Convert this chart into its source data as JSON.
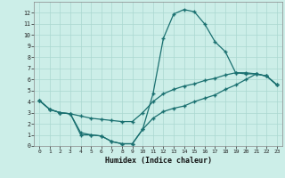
{
  "xlabel": "Humidex (Indice chaleur)",
  "xlim": [
    -0.5,
    23.5
  ],
  "ylim": [
    0,
    13
  ],
  "xticks": [
    0,
    1,
    2,
    3,
    4,
    5,
    6,
    7,
    8,
    9,
    10,
    11,
    12,
    13,
    14,
    15,
    16,
    17,
    18,
    19,
    20,
    21,
    22,
    23
  ],
  "yticks": [
    0,
    1,
    2,
    3,
    4,
    5,
    6,
    7,
    8,
    9,
    10,
    11,
    12
  ],
  "bg_color": "#cceee8",
  "grid_color": "#aad8d0",
  "line_color": "#1a7070",
  "line1_x": [
    0,
    1,
    2,
    3,
    4,
    5,
    6,
    7,
    8,
    9,
    10,
    11,
    12,
    13,
    14,
    15,
    16,
    17,
    18,
    19,
    20,
    21,
    22,
    23
  ],
  "line1_y": [
    4.1,
    3.3,
    3.0,
    2.9,
    1.2,
    1.0,
    0.9,
    0.4,
    0.2,
    0.2,
    1.5,
    4.7,
    9.7,
    11.9,
    12.3,
    12.1,
    11.0,
    9.4,
    8.5,
    6.6,
    6.5,
    6.5,
    6.3,
    5.5
  ],
  "line2_x": [
    0,
    1,
    2,
    3,
    4,
    5,
    6,
    7,
    8,
    9,
    10,
    11,
    12,
    13,
    14,
    15,
    16,
    17,
    18,
    19,
    20,
    21,
    22,
    23
  ],
  "line2_y": [
    4.1,
    3.3,
    3.0,
    2.9,
    2.7,
    2.5,
    2.4,
    2.3,
    2.2,
    2.2,
    3.0,
    4.0,
    4.7,
    5.1,
    5.4,
    5.6,
    5.9,
    6.1,
    6.4,
    6.6,
    6.6,
    6.5,
    6.3,
    5.5
  ],
  "line3_x": [
    0,
    1,
    2,
    3,
    4,
    5,
    6,
    7,
    8,
    9,
    10,
    11,
    12,
    13,
    14,
    15,
    16,
    17,
    18,
    19,
    20,
    21,
    22,
    23
  ],
  "line3_y": [
    4.1,
    3.3,
    3.0,
    2.9,
    1.0,
    1.0,
    0.9,
    0.4,
    0.2,
    0.2,
    1.5,
    2.5,
    3.1,
    3.4,
    3.6,
    4.0,
    4.3,
    4.6,
    5.1,
    5.5,
    6.0,
    6.5,
    6.3,
    5.5
  ]
}
